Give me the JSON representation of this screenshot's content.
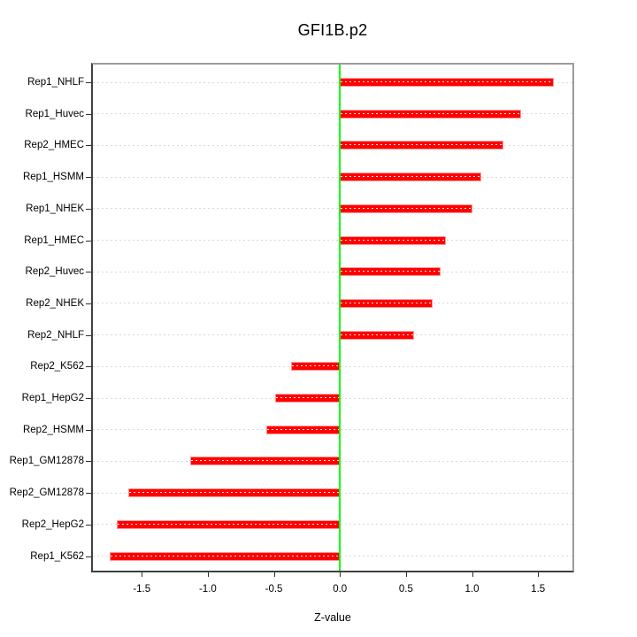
{
  "figure": {
    "title": "GFI1B.p2",
    "xlabel": "Z-value"
  },
  "chart_data": {
    "type": "bar",
    "orientation": "horizontal",
    "title": "GFI1B.p2",
    "xlabel": "Z-value",
    "ylabel": "",
    "categories": [
      "Rep1_NHLF",
      "Rep1_Huvec",
      "Rep2_HMEC",
      "Rep1_HSMM",
      "Rep1_NHEK",
      "Rep1_HMEC",
      "Rep2_Huvec",
      "Rep2_NHEK",
      "Rep2_NHLF",
      "Rep2_K562",
      "Rep1_HepG2",
      "Rep2_HSMM",
      "Rep1_GM12878",
      "Rep2_GM12878",
      "Rep2_HepG2",
      "Rep1_K562"
    ],
    "values": [
      1.62,
      1.37,
      1.24,
      1.07,
      1.0,
      0.8,
      0.76,
      0.7,
      0.56,
      -0.37,
      -0.49,
      -0.56,
      -1.13,
      -1.6,
      -1.69,
      -1.74
    ],
    "xlim": [
      -1.87,
      1.76
    ],
    "x_ticks": [
      -1.5,
      -1.0,
      -0.5,
      0.0,
      0.5,
      1.0,
      1.5
    ],
    "x_tick_labels": [
      "-1.5",
      "-1.0",
      "-0.5",
      "0.0",
      "0.5",
      "1.0",
      "1.5"
    ],
    "grid": "dashed horizontal line per category",
    "legend": "none",
    "colors": {
      "bar": "#ff0000",
      "bar_border": "#ff9999",
      "zero_line": "#00ff00",
      "grid_line": "#d9d9d9",
      "bar_center_dash": "#ffffff",
      "frame_dark": "#404040",
      "frame_light": "#9c9c9c",
      "text": "#000000"
    }
  }
}
